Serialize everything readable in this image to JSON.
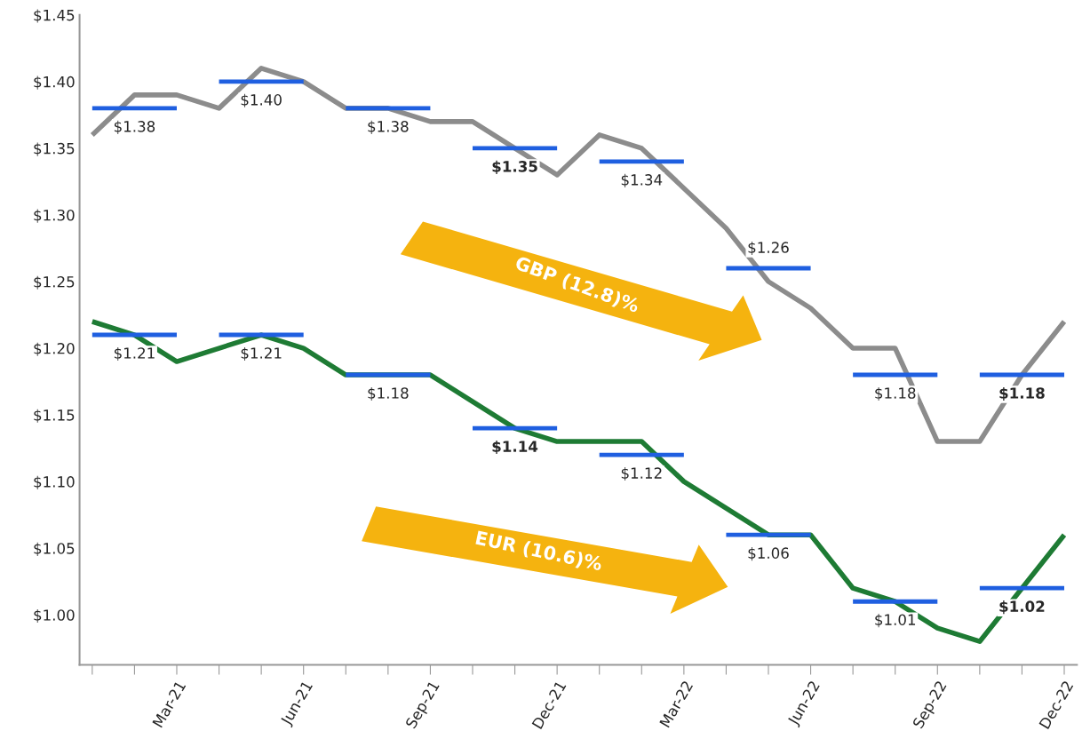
{
  "chart_data": {
    "type": "line",
    "categories": [
      null,
      null,
      "Mar-21",
      null,
      null,
      "Jun-21",
      null,
      null,
      "Sep-21",
      null,
      null,
      "Dec-21",
      null,
      null,
      "Mar-22",
      null,
      null,
      "Jun-22",
      null,
      null,
      "Sep-22",
      null,
      null,
      "Dec-22"
    ],
    "series": [
      {
        "color": "#8c8c8c",
        "values": [
          1.36,
          1.39,
          1.39,
          1.38,
          1.41,
          1.4,
          1.38,
          1.38,
          1.37,
          1.37,
          1.35,
          1.33,
          1.36,
          1.35,
          1.32,
          1.29,
          1.25,
          1.23,
          1.2,
          1.2,
          1.13,
          1.13,
          1.18,
          1.22
        ]
      },
      {
        "color": "#1e7b34",
        "values": [
          1.22,
          1.21,
          1.19,
          1.2,
          1.21,
          1.2,
          1.18,
          1.18,
          1.18,
          1.16,
          1.14,
          1.13,
          1.13,
          1.13,
          1.1,
          1.08,
          1.06,
          1.06,
          1.02,
          1.01,
          0.99,
          0.98,
          1.02,
          1.06
        ]
      },
      {
        "color": "#1f5fe0",
        "values": [
          1.38,
          1.38,
          1.38,
          null,
          null,
          null,
          null,
          null,
          null,
          null,
          null,
          null,
          null,
          null,
          null,
          null,
          null,
          null,
          null,
          null,
          null,
          null,
          null,
          null
        ],
        "value_labels": [
          null,
          "$1.38",
          null,
          null,
          null,
          null,
          null,
          null,
          null,
          null,
          null,
          null,
          null,
          null,
          null,
          null,
          null,
          null,
          null,
          null,
          null,
          null,
          null,
          null
        ]
      },
      {
        "color": "#1f5fe0",
        "values": [
          null,
          null,
          null,
          1.4,
          1.4,
          1.4,
          null,
          null,
          null,
          null,
          null,
          null,
          null,
          null,
          null,
          null,
          null,
          null,
          null,
          null,
          null,
          null,
          null,
          null
        ],
        "value_labels": [
          null,
          null,
          null,
          null,
          "$1.40",
          null,
          null,
          null,
          null,
          null,
          null,
          null,
          null,
          null,
          null,
          null,
          null,
          null,
          null,
          null,
          null,
          null,
          null,
          null
        ]
      },
      {
        "color": "#1f5fe0",
        "values": [
          null,
          null,
          null,
          null,
          null,
          null,
          1.38,
          1.38,
          1.38,
          null,
          null,
          null,
          null,
          null,
          null,
          null,
          null,
          null,
          null,
          null,
          null,
          null,
          null,
          null
        ],
        "value_labels": [
          null,
          null,
          null,
          null,
          null,
          null,
          null,
          "$1.38",
          null,
          null,
          null,
          null,
          null,
          null,
          null,
          null,
          null,
          null,
          null,
          null,
          null,
          null,
          null,
          null
        ]
      },
      {
        "color": "#1f5fe0",
        "values": [
          null,
          null,
          null,
          null,
          null,
          null,
          null,
          null,
          null,
          1.35,
          1.35,
          1.35,
          null,
          null,
          null,
          null,
          null,
          null,
          null,
          null,
          null,
          null,
          null,
          null
        ],
        "value_labels": [
          null,
          null,
          null,
          null,
          null,
          null,
          null,
          null,
          null,
          null,
          "$1.35",
          null,
          null,
          null,
          null,
          null,
          null,
          null,
          null,
          null,
          null,
          null,
          null,
          null
        ]
      },
      {
        "color": "#1f5fe0",
        "values": [
          null,
          null,
          null,
          null,
          null,
          null,
          null,
          null,
          null,
          null,
          null,
          null,
          1.34,
          1.34,
          1.34,
          null,
          null,
          null,
          null,
          null,
          null,
          null,
          null,
          null
        ],
        "value_labels": [
          null,
          null,
          null,
          null,
          null,
          null,
          null,
          null,
          null,
          null,
          null,
          null,
          null,
          "$1.34",
          null,
          null,
          null,
          null,
          null,
          null,
          null,
          null,
          null,
          null
        ]
      },
      {
        "color": "#1f5fe0",
        "values": [
          null,
          null,
          null,
          null,
          null,
          null,
          null,
          null,
          null,
          null,
          null,
          null,
          null,
          null,
          null,
          1.26,
          1.26,
          1.26,
          null,
          null,
          null,
          null,
          null,
          null
        ],
        "value_labels": [
          null,
          null,
          null,
          null,
          null,
          null,
          null,
          null,
          null,
          null,
          null,
          null,
          null,
          null,
          null,
          null,
          "$1.26",
          null,
          null,
          null,
          null,
          null,
          null,
          null
        ]
      },
      {
        "color": "#1f5fe0",
        "values": [
          null,
          null,
          null,
          null,
          null,
          null,
          null,
          null,
          null,
          null,
          null,
          null,
          null,
          null,
          null,
          null,
          null,
          null,
          1.18,
          1.18,
          1.18,
          null,
          null,
          null
        ],
        "value_labels": [
          null,
          null,
          null,
          null,
          null,
          null,
          null,
          null,
          null,
          null,
          null,
          null,
          null,
          null,
          null,
          null,
          null,
          null,
          null,
          "$1.18",
          null,
          null,
          null,
          null
        ]
      },
      {
        "color": "#1f5fe0",
        "values": [
          null,
          null,
          null,
          null,
          null,
          null,
          null,
          null,
          null,
          null,
          null,
          null,
          null,
          null,
          null,
          null,
          null,
          null,
          null,
          null,
          null,
          1.18,
          1.18,
          1.18
        ],
        "value_labels": [
          null,
          null,
          null,
          null,
          null,
          null,
          null,
          null,
          null,
          null,
          null,
          null,
          null,
          null,
          null,
          null,
          null,
          null,
          null,
          null,
          null,
          null,
          "$1.18",
          null
        ]
      },
      {
        "color": "#1f5fe0",
        "values": [
          1.21,
          1.21,
          1.21,
          null,
          null,
          null,
          null,
          null,
          null,
          null,
          null,
          null,
          null,
          null,
          null,
          null,
          null,
          null,
          null,
          null,
          null,
          null,
          null,
          null
        ],
        "value_labels": [
          null,
          "$1.21",
          null,
          null,
          null,
          null,
          null,
          null,
          null,
          null,
          null,
          null,
          null,
          null,
          null,
          null,
          null,
          null,
          null,
          null,
          null,
          null,
          null,
          null
        ]
      },
      {
        "color": "#1f5fe0",
        "values": [
          null,
          null,
          null,
          1.21,
          1.21,
          1.21,
          null,
          null,
          null,
          null,
          null,
          null,
          null,
          null,
          null,
          null,
          null,
          null,
          null,
          null,
          null,
          null,
          null,
          null
        ],
        "value_labels": [
          null,
          null,
          null,
          null,
          "$1.21",
          null,
          null,
          null,
          null,
          null,
          null,
          null,
          null,
          null,
          null,
          null,
          null,
          null,
          null,
          null,
          null,
          null,
          null,
          null
        ]
      },
      {
        "color": "#1f5fe0",
        "values": [
          null,
          null,
          null,
          null,
          null,
          null,
          1.18,
          1.18,
          1.18,
          null,
          null,
          null,
          null,
          null,
          null,
          null,
          null,
          null,
          null,
          null,
          null,
          null,
          null,
          null
        ],
        "value_labels": [
          null,
          null,
          null,
          null,
          null,
          null,
          null,
          "$1.18",
          null,
          null,
          null,
          null,
          null,
          null,
          null,
          null,
          null,
          null,
          null,
          null,
          null,
          null,
          null,
          null
        ]
      },
      {
        "color": "#1f5fe0",
        "values": [
          null,
          null,
          null,
          null,
          null,
          null,
          null,
          null,
          null,
          1.14,
          1.14,
          1.14,
          null,
          null,
          null,
          null,
          null,
          null,
          null,
          null,
          null,
          null,
          null,
          null
        ],
        "value_labels": [
          null,
          null,
          null,
          null,
          null,
          null,
          null,
          null,
          null,
          null,
          "$1.14",
          null,
          null,
          null,
          null,
          null,
          null,
          null,
          null,
          null,
          null,
          null,
          null,
          null
        ]
      },
      {
        "color": "#1f5fe0",
        "values": [
          null,
          null,
          null,
          null,
          null,
          null,
          null,
          null,
          null,
          null,
          null,
          null,
          1.12,
          1.12,
          1.12,
          null,
          null,
          null,
          null,
          null,
          null,
          null,
          null,
          null
        ],
        "value_labels": [
          null,
          null,
          null,
          null,
          null,
          null,
          null,
          null,
          null,
          null,
          null,
          null,
          null,
          "$1.12",
          null,
          null,
          null,
          null,
          null,
          null,
          null,
          null,
          null,
          null
        ]
      },
      {
        "color": "#1f5fe0",
        "values": [
          null,
          null,
          null,
          null,
          null,
          null,
          null,
          null,
          null,
          null,
          null,
          null,
          null,
          null,
          null,
          1.06,
          1.06,
          1.06,
          null,
          null,
          null,
          null,
          null,
          null
        ],
        "value_labels": [
          null,
          null,
          null,
          null,
          null,
          null,
          null,
          null,
          null,
          null,
          null,
          null,
          null,
          null,
          null,
          null,
          "$1.06",
          null,
          null,
          null,
          null,
          null,
          null,
          null
        ]
      },
      {
        "color": "#1f5fe0",
        "values": [
          null,
          null,
          null,
          null,
          null,
          null,
          null,
          null,
          null,
          null,
          null,
          null,
          null,
          null,
          null,
          null,
          null,
          null,
          1.01,
          1.01,
          1.01,
          null,
          null,
          null
        ],
        "value_labels": [
          null,
          null,
          null,
          null,
          null,
          null,
          null,
          null,
          null,
          null,
          null,
          null,
          null,
          null,
          null,
          null,
          null,
          null,
          null,
          "$1.01",
          null,
          null,
          null,
          null
        ]
      },
      {
        "color": "#1f5fe0",
        "values": [
          null,
          null,
          null,
          null,
          null,
          null,
          null,
          null,
          null,
          null,
          null,
          null,
          null,
          null,
          null,
          null,
          null,
          null,
          null,
          null,
          null,
          1.02,
          1.02,
          1.02
        ],
        "value_labels": [
          null,
          null,
          null,
          null,
          null,
          null,
          null,
          null,
          null,
          null,
          null,
          null,
          null,
          null,
          null,
          null,
          null,
          null,
          null,
          null,
          null,
          null,
          "$1.02",
          null
        ]
      }
    ],
    "ylim": [
      0.9625,
      1.45
    ],
    "yticks": [
      {
        "value": 1.0,
        "label": "$1.00"
      },
      {
        "value": 1.05,
        "label": "$1.05"
      },
      {
        "value": 1.1,
        "label": "$1.10"
      },
      {
        "value": 1.15,
        "label": "$1.15"
      },
      {
        "value": 1.2,
        "label": "$1.20"
      },
      {
        "value": 1.25,
        "label": "$1.25"
      },
      {
        "value": 1.3,
        "label": "$1.30"
      },
      {
        "value": 1.35,
        "label": "$1.35"
      },
      {
        "value": 1.4,
        "label": "$1.40"
      },
      {
        "value": 1.45,
        "label": "$1.45"
      }
    ],
    "annotations": [
      "GBP (12.8)%",
      "EUR (10.6)%"
    ],
    "grid": false,
    "legend": false,
    "marker": "none",
    "line_style": "solid"
  }
}
